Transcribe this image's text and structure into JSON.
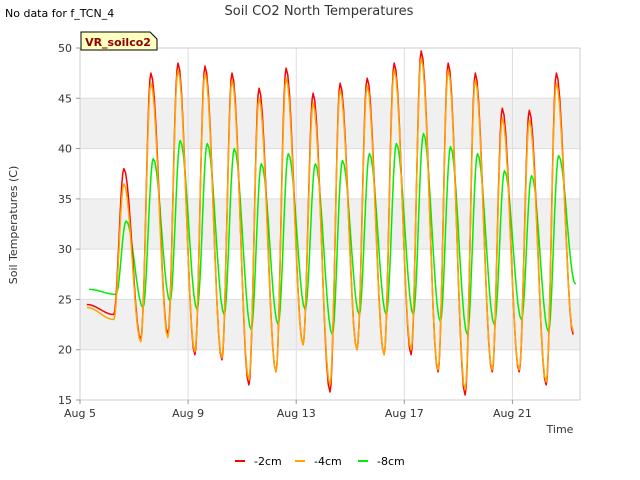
{
  "notice": "No data for f_TCN_4",
  "chart_data": {
    "type": "line",
    "title": "Soil CO2 North Temperatures",
    "xlabel": "Time",
    "ylabel": "Soil Temperatures (C)",
    "site_label": "VR_soilco2",
    "xlim": [
      "2024-08-05",
      "2024-08-23.5"
    ],
    "ylim": [
      15,
      50
    ],
    "yticks": [
      15,
      20,
      25,
      30,
      35,
      40,
      45,
      50
    ],
    "xticks": [
      {
        "date": "2024-08-05",
        "label": "Aug 5"
      },
      {
        "date": "2024-08-09",
        "label": "Aug 9"
      },
      {
        "date": "2024-08-13",
        "label": "Aug 13"
      },
      {
        "date": "2024-08-17",
        "label": "Aug 17"
      },
      {
        "date": "2024-08-21",
        "label": "Aug 21"
      }
    ],
    "grid": true,
    "legend_position": "bottom",
    "series": [
      {
        "name": "-2cm",
        "color": "#ff0000",
        "daily_min": [
          {
            "date": "2024-08-05T06:00",
            "value": 24.5
          },
          {
            "date": "2024-08-06T06:00",
            "value": 23.5
          },
          {
            "date": "2024-08-07T06:00",
            "value": 21.0
          },
          {
            "date": "2024-08-08T06:00",
            "value": 21.5
          },
          {
            "date": "2024-08-09T06:00",
            "value": 19.5
          },
          {
            "date": "2024-08-10T06:00",
            "value": 19.0
          },
          {
            "date": "2024-08-11T06:00",
            "value": 16.5
          },
          {
            "date": "2024-08-12T06:00",
            "value": 17.8
          },
          {
            "date": "2024-08-13T06:00",
            "value": 20.5
          },
          {
            "date": "2024-08-14T06:00",
            "value": 15.8
          },
          {
            "date": "2024-08-15T06:00",
            "value": 20.0
          },
          {
            "date": "2024-08-16T06:00",
            "value": 19.5
          },
          {
            "date": "2024-08-17T06:00",
            "value": 19.5
          },
          {
            "date": "2024-08-18T06:00",
            "value": 17.8
          },
          {
            "date": "2024-08-19T06:00",
            "value": 15.5
          },
          {
            "date": "2024-08-20T06:00",
            "value": 17.8
          },
          {
            "date": "2024-08-21T06:00",
            "value": 17.8
          },
          {
            "date": "2024-08-22T06:00",
            "value": 16.5
          },
          {
            "date": "2024-08-23T06:00",
            "value": 21.5
          }
        ],
        "daily_max": [
          {
            "date": "2024-08-06T15:00",
            "value": 38.0
          },
          {
            "date": "2024-08-07T15:00",
            "value": 47.5
          },
          {
            "date": "2024-08-08T15:00",
            "value": 48.5
          },
          {
            "date": "2024-08-09T15:00",
            "value": 48.2
          },
          {
            "date": "2024-08-10T15:00",
            "value": 47.5
          },
          {
            "date": "2024-08-11T15:00",
            "value": 46.0
          },
          {
            "date": "2024-08-12T15:00",
            "value": 48.0
          },
          {
            "date": "2024-08-13T15:00",
            "value": 45.5
          },
          {
            "date": "2024-08-14T15:00",
            "value": 46.5
          },
          {
            "date": "2024-08-15T15:00",
            "value": 47.0
          },
          {
            "date": "2024-08-16T15:00",
            "value": 48.5
          },
          {
            "date": "2024-08-17T15:00",
            "value": 49.7
          },
          {
            "date": "2024-08-18T15:00",
            "value": 48.5
          },
          {
            "date": "2024-08-19T15:00",
            "value": 47.5
          },
          {
            "date": "2024-08-20T15:00",
            "value": 44.0
          },
          {
            "date": "2024-08-21T15:00",
            "value": 43.8
          },
          {
            "date": "2024-08-22T15:00",
            "value": 47.5
          }
        ]
      },
      {
        "name": "-4cm",
        "color": "#ffa500",
        "daily_min": [
          {
            "date": "2024-08-05T06:00",
            "value": 24.2
          },
          {
            "date": "2024-08-06T06:00",
            "value": 23.0
          },
          {
            "date": "2024-08-07T06:00",
            "value": 20.8
          },
          {
            "date": "2024-08-08T06:00",
            "value": 21.2
          },
          {
            "date": "2024-08-09T06:00",
            "value": 19.8
          },
          {
            "date": "2024-08-10T06:00",
            "value": 19.2
          },
          {
            "date": "2024-08-11T06:00",
            "value": 17.0
          },
          {
            "date": "2024-08-12T06:00",
            "value": 17.8
          },
          {
            "date": "2024-08-13T06:00",
            "value": 20.5
          },
          {
            "date": "2024-08-14T06:00",
            "value": 16.5
          },
          {
            "date": "2024-08-15T06:00",
            "value": 20.0
          },
          {
            "date": "2024-08-16T06:00",
            "value": 19.5
          },
          {
            "date": "2024-08-17T06:00",
            "value": 20.0
          },
          {
            "date": "2024-08-18T06:00",
            "value": 18.0
          },
          {
            "date": "2024-08-19T06:00",
            "value": 16.0
          },
          {
            "date": "2024-08-20T06:00",
            "value": 18.0
          },
          {
            "date": "2024-08-21T06:00",
            "value": 18.0
          },
          {
            "date": "2024-08-22T06:00",
            "value": 16.8
          },
          {
            "date": "2024-08-23T06:00",
            "value": 21.8
          }
        ],
        "daily_max": [
          {
            "date": "2024-08-06T15:00",
            "value": 36.5
          },
          {
            "date": "2024-08-07T15:00",
            "value": 46.5
          },
          {
            "date": "2024-08-08T15:00",
            "value": 47.8
          },
          {
            "date": "2024-08-09T15:00",
            "value": 47.5
          },
          {
            "date": "2024-08-10T15:00",
            "value": 46.8
          },
          {
            "date": "2024-08-11T15:00",
            "value": 45.0
          },
          {
            "date": "2024-08-12T15:00",
            "value": 47.0
          },
          {
            "date": "2024-08-13T15:00",
            "value": 44.5
          },
          {
            "date": "2024-08-14T15:00",
            "value": 45.8
          },
          {
            "date": "2024-08-15T15:00",
            "value": 46.2
          },
          {
            "date": "2024-08-16T15:00",
            "value": 47.8
          },
          {
            "date": "2024-08-17T15:00",
            "value": 49.0
          },
          {
            "date": "2024-08-18T15:00",
            "value": 47.8
          },
          {
            "date": "2024-08-19T15:00",
            "value": 46.8
          },
          {
            "date": "2024-08-20T15:00",
            "value": 43.0
          },
          {
            "date": "2024-08-21T15:00",
            "value": 42.8
          },
          {
            "date": "2024-08-22T15:00",
            "value": 46.5
          }
        ]
      },
      {
        "name": "-8cm",
        "color": "#00ee00",
        "daily_min": [
          {
            "date": "2024-08-05T08:00",
            "value": 26.0
          },
          {
            "date": "2024-08-06T08:00",
            "value": 25.5
          },
          {
            "date": "2024-08-07T08:00",
            "value": 24.2
          },
          {
            "date": "2024-08-08T08:00",
            "value": 24.8
          },
          {
            "date": "2024-08-09T08:00",
            "value": 24.0
          },
          {
            "date": "2024-08-10T08:00",
            "value": 23.5
          },
          {
            "date": "2024-08-11T08:00",
            "value": 22.0
          },
          {
            "date": "2024-08-12T08:00",
            "value": 22.5
          },
          {
            "date": "2024-08-13T08:00",
            "value": 24.0
          },
          {
            "date": "2024-08-14T08:00",
            "value": 21.5
          },
          {
            "date": "2024-08-15T08:00",
            "value": 23.5
          },
          {
            "date": "2024-08-16T08:00",
            "value": 23.5
          },
          {
            "date": "2024-08-17T08:00",
            "value": 23.5
          },
          {
            "date": "2024-08-18T08:00",
            "value": 22.8
          },
          {
            "date": "2024-08-19T08:00",
            "value": 21.5
          },
          {
            "date": "2024-08-20T08:00",
            "value": 22.5
          },
          {
            "date": "2024-08-21T08:00",
            "value": 23.0
          },
          {
            "date": "2024-08-22T08:00",
            "value": 21.8
          },
          {
            "date": "2024-08-23T08:00",
            "value": 26.5
          }
        ],
        "daily_max": [
          {
            "date": "2024-08-06T17:00",
            "value": 32.8
          },
          {
            "date": "2024-08-07T17:00",
            "value": 39.0
          },
          {
            "date": "2024-08-08T17:00",
            "value": 40.8
          },
          {
            "date": "2024-08-09T17:00",
            "value": 40.5
          },
          {
            "date": "2024-08-10T17:00",
            "value": 40.0
          },
          {
            "date": "2024-08-11T17:00",
            "value": 38.5
          },
          {
            "date": "2024-08-12T17:00",
            "value": 39.5
          },
          {
            "date": "2024-08-13T17:00",
            "value": 38.5
          },
          {
            "date": "2024-08-14T17:00",
            "value": 38.8
          },
          {
            "date": "2024-08-15T17:00",
            "value": 39.5
          },
          {
            "date": "2024-08-16T17:00",
            "value": 40.5
          },
          {
            "date": "2024-08-17T17:00",
            "value": 41.5
          },
          {
            "date": "2024-08-18T17:00",
            "value": 40.2
          },
          {
            "date": "2024-08-19T17:00",
            "value": 39.5
          },
          {
            "date": "2024-08-20T17:00",
            "value": 37.8
          },
          {
            "date": "2024-08-21T17:00",
            "value": 37.3
          },
          {
            "date": "2024-08-22T17:00",
            "value": 39.3
          }
        ]
      }
    ]
  }
}
